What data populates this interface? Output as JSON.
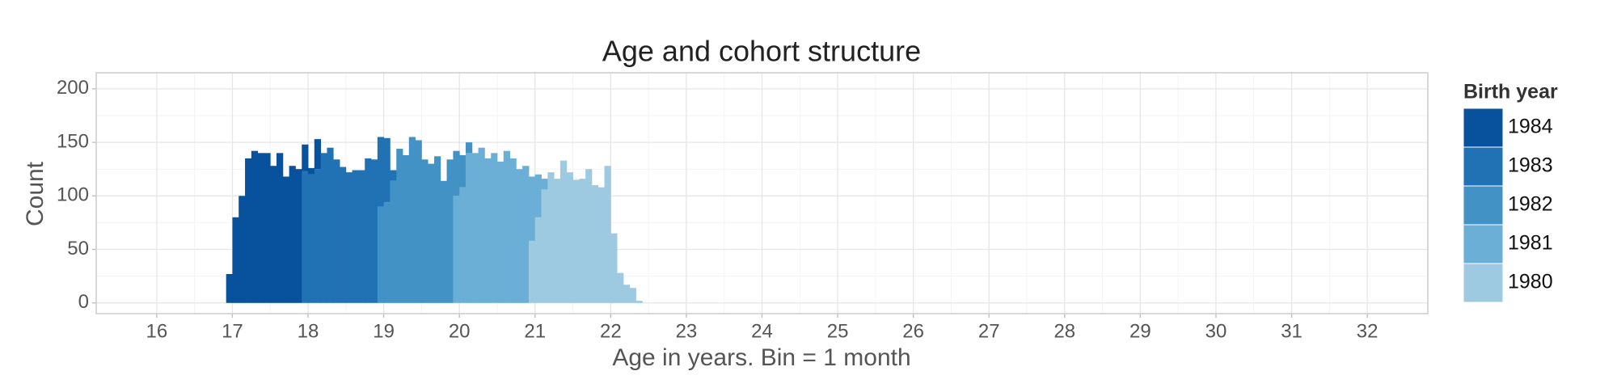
{
  "chart_data": {
    "type": "histogram",
    "stacked": true,
    "title": "Age and cohort structure",
    "x_label": "Age in years. Bin = 1 month",
    "y_label": "Count",
    "legend_title": "Birth year",
    "legend_position": "right",
    "grid": true,
    "bins": [
      16.917,
      17,
      17.083,
      17.167,
      17.25,
      17.333,
      17.417,
      17.5,
      17.583,
      17.667,
      17.75,
      17.833,
      17.917,
      18,
      18.083,
      18.167,
      18.25,
      18.333,
      18.417,
      18.5,
      18.583,
      18.667,
      18.75,
      18.833,
      18.917,
      19,
      19.083,
      19.167,
      19.25,
      19.333,
      19.417,
      19.5,
      19.583,
      19.667,
      19.75,
      19.833,
      19.917,
      20,
      20.083,
      20.167,
      20.25,
      20.333,
      20.417,
      20.5,
      20.583,
      20.667,
      20.75,
      20.833,
      20.917,
      21,
      21.083,
      21.167,
      21.25,
      21.333,
      21.417,
      21.5,
      21.583,
      21.667,
      21.75,
      21.833,
      21.917,
      22,
      22.083,
      22.167,
      22.25,
      22.333,
      22.417
    ],
    "series": [
      {
        "name": "1984",
        "color": "#08519c",
        "values": [
          27,
          80,
          100,
          135,
          142,
          140,
          140,
          128,
          140,
          118,
          128,
          125,
          25,
          6,
          28,
          0,
          0,
          0,
          0,
          0,
          0,
          0,
          0,
          0,
          0,
          0,
          0,
          0,
          0,
          0,
          0,
          0,
          0,
          0,
          0,
          0,
          0,
          0,
          0,
          0,
          0,
          0,
          0,
          0,
          0,
          0,
          0,
          0,
          0,
          0,
          0,
          0,
          0,
          0,
          0,
          0,
          0,
          0,
          0,
          0,
          0,
          0,
          0,
          0,
          0,
          0
        ]
      },
      {
        "name": "1983",
        "color": "#2171b5",
        "values": [
          0,
          0,
          0,
          0,
          0,
          0,
          0,
          0,
          0,
          0,
          0,
          0,
          123,
          120,
          125,
          140,
          145,
          134,
          127,
          122,
          124,
          124,
          135,
          134,
          65,
          60,
          10,
          0,
          0,
          0,
          0,
          0,
          0,
          0,
          0,
          0,
          0,
          0,
          0,
          0,
          0,
          0,
          0,
          0,
          0,
          0,
          0,
          0,
          0,
          0,
          0,
          0,
          0,
          0,
          0,
          0,
          0,
          0,
          0,
          0,
          0,
          0,
          0,
          0,
          0,
          0
        ]
      },
      {
        "name": "1982",
        "color": "#4292c6",
        "values": [
          0,
          0,
          0,
          0,
          0,
          0,
          0,
          0,
          0,
          0,
          0,
          0,
          0,
          0,
          0,
          0,
          0,
          0,
          0,
          0,
          0,
          0,
          0,
          0,
          90,
          94,
          114,
          144,
          138,
          155,
          152,
          134,
          130,
          137,
          114,
          134,
          42,
          30,
          10,
          0,
          0,
          0,
          0,
          0,
          0,
          0,
          0,
          0,
          0,
          0,
          0,
          0,
          0,
          0,
          0,
          0,
          0,
          0,
          0,
          0,
          0,
          0,
          0,
          0,
          0,
          0
        ]
      },
      {
        "name": "1981",
        "color": "#6baed6",
        "values": [
          0,
          0,
          0,
          0,
          0,
          0,
          0,
          0,
          0,
          0,
          0,
          0,
          0,
          0,
          0,
          0,
          0,
          0,
          0,
          0,
          0,
          0,
          0,
          0,
          0,
          0,
          0,
          0,
          0,
          0,
          0,
          0,
          0,
          0,
          0,
          0,
          100,
          108,
          140,
          140,
          145,
          135,
          140,
          132,
          142,
          135,
          125,
          128,
          60,
          40,
          10,
          0,
          0,
          0,
          0,
          0,
          0,
          0,
          0,
          0,
          0,
          0,
          0,
          0,
          0,
          0
        ]
      },
      {
        "name": "1980",
        "color": "#9ecae1",
        "values": [
          0,
          0,
          0,
          0,
          0,
          0,
          0,
          0,
          0,
          0,
          0,
          0,
          0,
          0,
          0,
          0,
          0,
          0,
          0,
          0,
          0,
          0,
          0,
          0,
          0,
          0,
          0,
          0,
          0,
          0,
          0,
          0,
          0,
          0,
          0,
          0,
          0,
          0,
          0,
          0,
          0,
          0,
          0,
          0,
          0,
          0,
          0,
          0,
          58,
          80,
          106,
          122,
          116,
          133,
          122,
          115,
          116,
          125,
          110,
          108,
          128,
          65,
          28,
          17,
          14,
          2
        ]
      }
    ],
    "xlim": [
      15.2,
      32.8
    ],
    "xticks": [
      16,
      17,
      18,
      19,
      20,
      21,
      22,
      23,
      24,
      25,
      26,
      27,
      28,
      29,
      30,
      31,
      32
    ],
    "ylim": [
      -10,
      215
    ],
    "yticks": [
      0,
      50,
      100,
      150,
      200
    ]
  }
}
